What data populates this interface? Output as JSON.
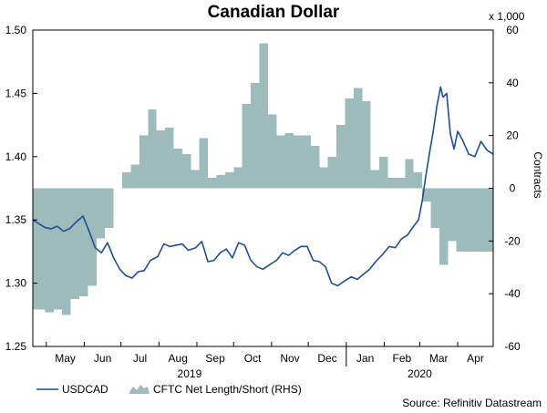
{
  "chart_data": {
    "type": "line",
    "title": "Canadian Dollar",
    "x_labels": [
      "May",
      "Jun",
      "Jul",
      "Aug",
      "Sep",
      "Oct",
      "Nov",
      "Dec",
      "Jan",
      "Feb",
      "Mar",
      "Apr"
    ],
    "year_labels": [
      "2019",
      "2020"
    ],
    "x_range": [
      "2019-04-20",
      "2020-04-30"
    ],
    "left_axis": {
      "ticks": [
        "1.25",
        "1.30",
        "1.35",
        "1.40",
        "1.45",
        "1.50"
      ],
      "ylim": [
        1.25,
        1.5
      ]
    },
    "right_axis": {
      "ticks": [
        "-60",
        "-40",
        "-20",
        "0",
        "20",
        "40",
        "60"
      ],
      "ylim": [
        -60,
        60
      ],
      "label": "Contracts",
      "multiplier_label": "x 1,000"
    },
    "grid": false,
    "legend_position": "bottom-left",
    "colors": {
      "usdcad": "#1f4e96",
      "cftc": "#9dbbbb"
    },
    "source": "Source: Refinitiv Datastream",
    "series": [
      {
        "name": "USDCAD",
        "axis": "left",
        "x": [
          "2019-04-20",
          "2019-04-25",
          "2019-04-30",
          "2019-05-05",
          "2019-05-10",
          "2019-05-15",
          "2019-05-20",
          "2019-05-25",
          "2019-05-31",
          "2019-06-05",
          "2019-06-10",
          "2019-06-15",
          "2019-06-20",
          "2019-06-25",
          "2019-06-30",
          "2019-07-05",
          "2019-07-10",
          "2019-07-15",
          "2019-07-20",
          "2019-07-25",
          "2019-07-31",
          "2019-08-05",
          "2019-08-10",
          "2019-08-15",
          "2019-08-20",
          "2019-08-25",
          "2019-08-31",
          "2019-09-05",
          "2019-09-10",
          "2019-09-15",
          "2019-09-20",
          "2019-09-25",
          "2019-09-30",
          "2019-10-05",
          "2019-10-10",
          "2019-10-15",
          "2019-10-20",
          "2019-10-25",
          "2019-10-31",
          "2019-11-05",
          "2019-11-10",
          "2019-11-15",
          "2019-11-20",
          "2019-11-25",
          "2019-11-30",
          "2019-12-05",
          "2019-12-10",
          "2019-12-15",
          "2019-12-20",
          "2019-12-25",
          "2019-12-31",
          "2020-01-05",
          "2020-01-10",
          "2020-01-15",
          "2020-01-20",
          "2020-01-25",
          "2020-01-31",
          "2020-02-05",
          "2020-02-10",
          "2020-02-15",
          "2020-02-20",
          "2020-02-25",
          "2020-02-29",
          "2020-03-03",
          "2020-03-06",
          "2020-03-09",
          "2020-03-12",
          "2020-03-15",
          "2020-03-18",
          "2020-03-20",
          "2020-03-23",
          "2020-03-26",
          "2020-03-29",
          "2020-04-01",
          "2020-04-05",
          "2020-04-10",
          "2020-04-15",
          "2020-04-20",
          "2020-04-25",
          "2020-04-30"
        ],
        "values": [
          1.35,
          1.347,
          1.344,
          1.343,
          1.345,
          1.341,
          1.343,
          1.348,
          1.353,
          1.341,
          1.328,
          1.324,
          1.332,
          1.32,
          1.311,
          1.306,
          1.304,
          1.309,
          1.31,
          1.318,
          1.321,
          1.331,
          1.329,
          1.33,
          1.331,
          1.326,
          1.328,
          1.333,
          1.317,
          1.318,
          1.324,
          1.327,
          1.32,
          1.332,
          1.33,
          1.318,
          1.313,
          1.311,
          1.315,
          1.318,
          1.324,
          1.322,
          1.326,
          1.329,
          1.329,
          1.318,
          1.317,
          1.313,
          1.3,
          1.298,
          1.302,
          1.305,
          1.303,
          1.307,
          1.311,
          1.317,
          1.323,
          1.329,
          1.328,
          1.335,
          1.338,
          1.345,
          1.35,
          1.365,
          1.385,
          1.403,
          1.42,
          1.44,
          1.455,
          1.447,
          1.45,
          1.418,
          1.406,
          1.42,
          1.413,
          1.402,
          1.4,
          1.412,
          1.405,
          1.402
        ]
      },
      {
        "name": "CFTC Net Length/Short (RHS)",
        "axis": "right",
        "x": [
          "2019-04-20",
          "2019-04-30",
          "2019-05-07",
          "2019-05-14",
          "2019-05-21",
          "2019-05-28",
          "2019-06-04",
          "2019-06-11",
          "2019-06-18",
          "2019-06-25",
          "2019-07-02",
          "2019-07-09",
          "2019-07-16",
          "2019-07-23",
          "2019-07-30",
          "2019-08-06",
          "2019-08-13",
          "2019-08-20",
          "2019-08-27",
          "2019-09-03",
          "2019-09-10",
          "2019-09-17",
          "2019-09-24",
          "2019-10-01",
          "2019-10-08",
          "2019-10-15",
          "2019-10-22",
          "2019-10-29",
          "2019-11-05",
          "2019-11-12",
          "2019-11-19",
          "2019-11-26",
          "2019-12-03",
          "2019-12-10",
          "2019-12-17",
          "2019-12-24",
          "2019-12-31",
          "2020-01-07",
          "2020-01-14",
          "2020-01-21",
          "2020-01-28",
          "2020-02-04",
          "2020-02-11",
          "2020-02-18",
          "2020-02-25",
          "2020-03-03",
          "2020-03-10",
          "2020-03-17",
          "2020-03-24",
          "2020-03-31",
          "2020-04-07",
          "2020-04-14",
          "2020-04-21",
          "2020-04-30"
        ],
        "values": [
          -46,
          -47,
          -46,
          -48,
          -42,
          -41,
          -37,
          -19,
          -15,
          0,
          6,
          9,
          20,
          30,
          22,
          23,
          15,
          13,
          7,
          19,
          4,
          5,
          6,
          8,
          32,
          40,
          55,
          28,
          20,
          21,
          20,
          20,
          16,
          8,
          12,
          24,
          34,
          38,
          33,
          7,
          12,
          4,
          4,
          11,
          6,
          -5,
          -15,
          -29,
          -20,
          -24,
          -24,
          -24,
          -24,
          -24
        ]
      }
    ]
  }
}
